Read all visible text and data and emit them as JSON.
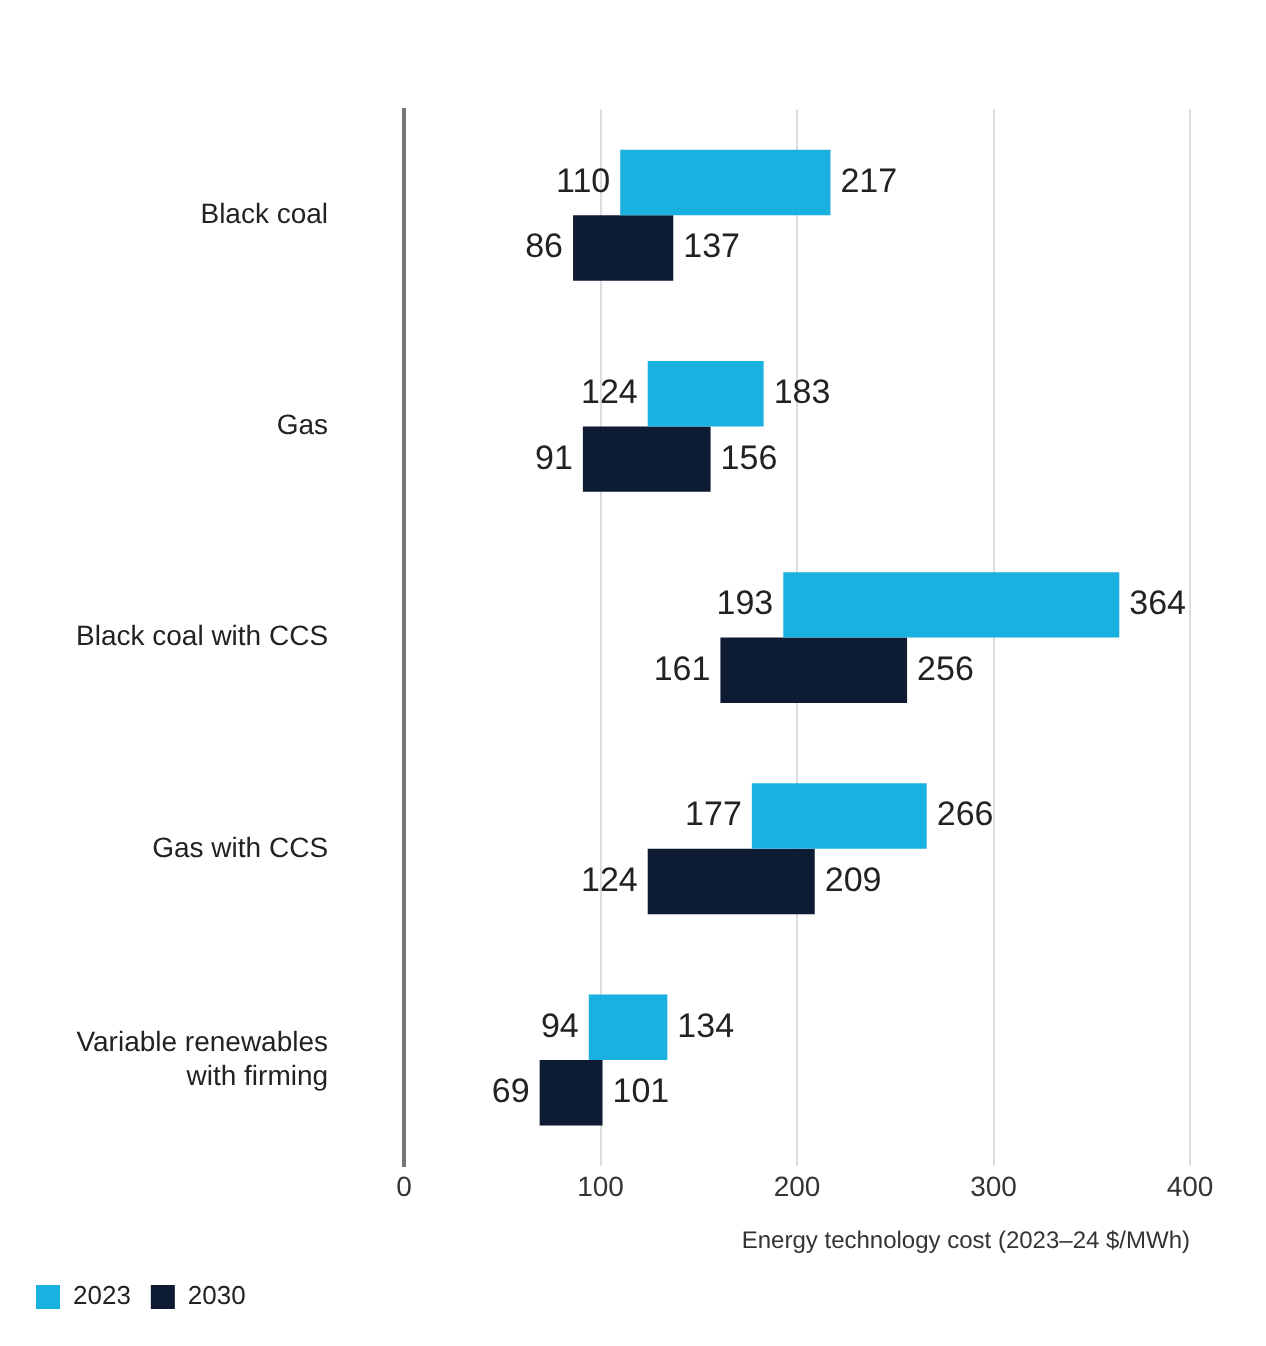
{
  "chart_data": {
    "type": "bar",
    "orientation": "horizontal",
    "xlabel": "Energy technology cost (2023–24 $/MWh)",
    "categories": [
      "Black coal",
      "Gas",
      "Black coal with CCS",
      "Gas with CCS",
      "Variable renewables with firming"
    ],
    "series": [
      {
        "name": "2023",
        "color": "#1ab0e0",
        "base": [
          110,
          124,
          193,
          177,
          94
        ],
        "values": [
          107,
          59,
          171,
          89,
          40
        ]
      },
      {
        "name": "2030",
        "color": "#0d1b33",
        "base": [
          86,
          91,
          161,
          124,
          69
        ],
        "values": [
          51,
          65,
          95,
          85,
          32
        ]
      }
    ],
    "xlim": [
      0,
      400
    ],
    "xticks": [
      0,
      100,
      200,
      300,
      400
    ],
    "grid": "x",
    "legend": "bottom left",
    "annotations": [
      {
        "text": "110",
        "x": 110,
        "y": "Black coal"
      },
      {
        "text": "217",
        "x": 217,
        "y": "Black coal"
      },
      {
        "text": "86",
        "x": 86,
        "y": "Black coal"
      },
      {
        "text": "137",
        "x": 137,
        "y": "Black coal"
      },
      {
        "text": "124",
        "x": 124,
        "y": "Gas"
      },
      {
        "text": "183",
        "x": 183,
        "y": "Gas"
      },
      {
        "text": "91",
        "x": 91,
        "y": "Gas"
      },
      {
        "text": "156",
        "x": 156,
        "y": "Gas"
      },
      {
        "text": "193",
        "x": 193,
        "y": "Black coal with CCS"
      },
      {
        "text": "364",
        "x": 364,
        "y": "Black coal with CCS"
      },
      {
        "text": "161",
        "x": 161,
        "y": "Black coal with CCS"
      },
      {
        "text": "256",
        "x": 256,
        "y": "Black coal with CCS"
      },
      {
        "text": "177",
        "x": 177,
        "y": "Gas with CCS"
      },
      {
        "text": "266",
        "x": 266,
        "y": "Gas with CCS"
      },
      {
        "text": "124",
        "x": 124,
        "y": "Gas with CCS"
      },
      {
        "text": "209",
        "x": 209,
        "y": "Gas with CCS"
      },
      {
        "text": "94",
        "x": 94,
        "y": "Variable renewables with firming"
      },
      {
        "text": "134",
        "x": 134,
        "y": "Variable renewables with firming"
      },
      {
        "text": "69",
        "x": 69,
        "y": "Variable renewables with firming"
      },
      {
        "text": "101",
        "x": 101,
        "y": "Variable renewables with firming"
      }
    ]
  }
}
